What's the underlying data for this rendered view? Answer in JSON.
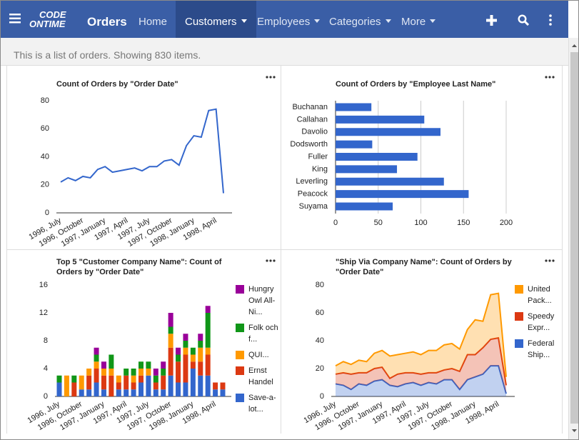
{
  "navbar": {
    "logo_top": "CODE",
    "logo_bottom": "ONTIME",
    "app": "Orders",
    "items": [
      "Home",
      "Customers",
      "Employees",
      "Categories",
      "More"
    ]
  },
  "info": "This is a list of orders. Showing 830 items.",
  "chart_data": [
    {
      "type": "line",
      "title": "Count of Orders by \"Order Date\"",
      "color": "#3366cc",
      "categories": [
        "1996, July",
        null,
        null,
        "1996, October",
        null,
        null,
        "1997, January",
        null,
        null,
        "1997, April",
        null,
        null,
        "1997, July",
        null,
        null,
        "1997, October",
        null,
        null,
        "1998, January",
        null,
        null,
        "1998, April",
        null
      ],
      "values": [
        22,
        25,
        23,
        26,
        25,
        31,
        33,
        29,
        30,
        31,
        32,
        30,
        33,
        33,
        37,
        38,
        34,
        48,
        55,
        54,
        73,
        74,
        14
      ],
      "ylim": [
        0,
        80
      ],
      "yticks": [
        0,
        20,
        40,
        60,
        80
      ],
      "grid": false
    },
    {
      "type": "bar",
      "horizontal": true,
      "title": "Count of Orders by \"Employee Last Name\"",
      "color": "#3366cc",
      "categories": [
        "Buchanan",
        "Callahan",
        "Davolio",
        "Dodsworth",
        "Fuller",
        "King",
        "Leverling",
        "Peacock",
        "Suyama"
      ],
      "values": [
        42,
        104,
        123,
        43,
        96,
        72,
        127,
        156,
        67
      ],
      "xlim": [
        0,
        200
      ],
      "xticks": [
        0,
        50,
        100,
        150,
        200
      ],
      "grid": true
    },
    {
      "type": "bar",
      "stacked": true,
      "title": "Top 5 \"Customer Company Name\": Count of Orders by \"Order Date\"",
      "categories": [
        "1996, July",
        null,
        null,
        "1996, October",
        null,
        null,
        "1997, January",
        null,
        null,
        "1997, April",
        null,
        null,
        "1997, July",
        null,
        null,
        "1997, October",
        null,
        null,
        "1998, January",
        null,
        null,
        "1998, April",
        null
      ],
      "series": [
        {
          "name": "Hungry Owl All-Ni...",
          "color": "#990099",
          "values": [
            0,
            0,
            0,
            0,
            0,
            1,
            1,
            0,
            0,
            0,
            0,
            0,
            0,
            1,
            1,
            2,
            1,
            1,
            0,
            1,
            1,
            0,
            0
          ]
        },
        {
          "name": "Folk och f...",
          "color": "#109618",
          "values": [
            1,
            0,
            1,
            0,
            0,
            1,
            0,
            2,
            0,
            1,
            1,
            1,
            1,
            1,
            1,
            1,
            1,
            1,
            1,
            1,
            5,
            0,
            0
          ]
        },
        {
          "name": "QUI...",
          "color": "#ff9900",
          "values": [
            0,
            3,
            0,
            2,
            1,
            1,
            1,
            1,
            1,
            0,
            1,
            1,
            1,
            0,
            0,
            2,
            0,
            1,
            1,
            2,
            1,
            0,
            0
          ]
        },
        {
          "name": "Ernst Handel",
          "color": "#dc3912",
          "values": [
            0,
            0,
            2,
            0,
            2,
            2,
            2,
            3,
            1,
            2,
            1,
            1,
            0,
            1,
            2,
            4,
            3,
            4,
            1,
            2,
            3,
            1,
            1
          ]
        },
        {
          "name": "Save-a-lot...",
          "color": "#3366cc",
          "values": [
            2,
            0,
            0,
            1,
            1,
            2,
            1,
            0,
            1,
            1,
            1,
            2,
            3,
            1,
            1,
            3,
            2,
            2,
            4,
            3,
            3,
            1,
            1
          ]
        }
      ],
      "ylim": [
        0,
        16
      ],
      "yticks": [
        0,
        4,
        8,
        12,
        16
      ],
      "grid": false
    },
    {
      "type": "area",
      "stacked": true,
      "title": "\"Ship Via Company Name\": Count of Orders by \"Order Date\"",
      "categories": [
        "1996, July",
        null,
        null,
        "1996, October",
        null,
        null,
        "1997, January",
        null,
        null,
        "1997, April",
        null,
        null,
        "1997, July",
        null,
        null,
        "1997, October",
        null,
        null,
        "1998, January",
        null,
        null,
        "1998, April",
        null
      ],
      "series": [
        {
          "name": "United Pack...",
          "color": "#ff9900",
          "values": [
            6,
            8,
            7,
            9,
            8,
            11,
            12,
            16,
            14,
            14,
            15,
            14,
            16,
            16,
            18,
            18,
            16,
            18,
            25,
            19,
            32,
            32,
            6
          ]
        },
        {
          "name": "Speedy Expr...",
          "color": "#dc3912",
          "values": [
            7,
            9,
            11,
            8,
            9,
            9,
            9,
            5,
            9,
            8,
            7,
            8,
            7,
            8,
            7,
            8,
            13,
            18,
            16,
            19,
            19,
            20,
            6
          ]
        },
        {
          "name": "Federal Ship...",
          "color": "#3366cc",
          "values": [
            9,
            8,
            5,
            9,
            8,
            11,
            12,
            8,
            7,
            9,
            10,
            8,
            10,
            9,
            12,
            12,
            5,
            12,
            14,
            16,
            22,
            22,
            2
          ]
        }
      ],
      "ylim": [
        0,
        80
      ],
      "yticks": [
        0,
        20,
        40,
        60,
        80
      ],
      "grid": false
    }
  ]
}
